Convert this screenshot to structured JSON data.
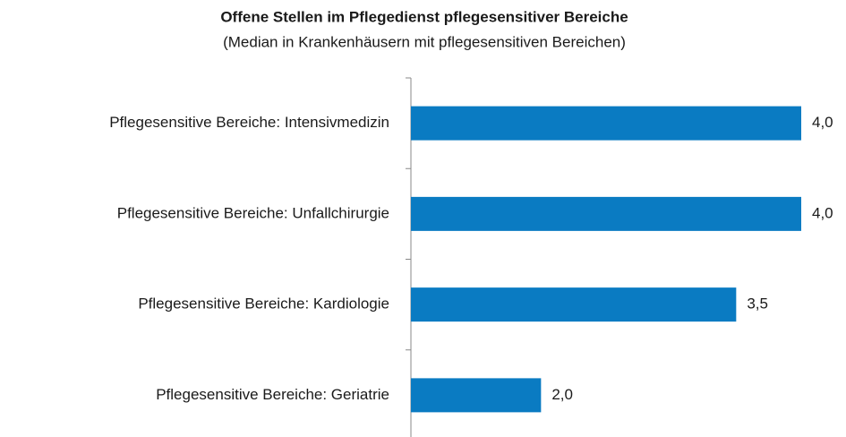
{
  "chart_data": {
    "type": "barh",
    "title": "Offene Stellen im Pflegedienst pflegesensitiver Bereiche",
    "subtitle": "(Median in Krankenhäusern mit pflegesensitiven Bereichen)",
    "categories": [
      "Pflegesensitive Bereiche: Intensivmedizin",
      "Pflegesensitive Bereiche: Unfallchirurgie",
      "Pflegesensitive Bereiche: Kardiologie",
      "Pflegesensitive Bereiche: Geriatrie"
    ],
    "values": [
      4.0,
      4.0,
      3.5,
      2.0
    ],
    "value_labels": [
      "4,0",
      "4,0",
      "3,5",
      "2,0"
    ],
    "color": "#0a7bc2",
    "xlim": [
      1,
      4
    ]
  }
}
